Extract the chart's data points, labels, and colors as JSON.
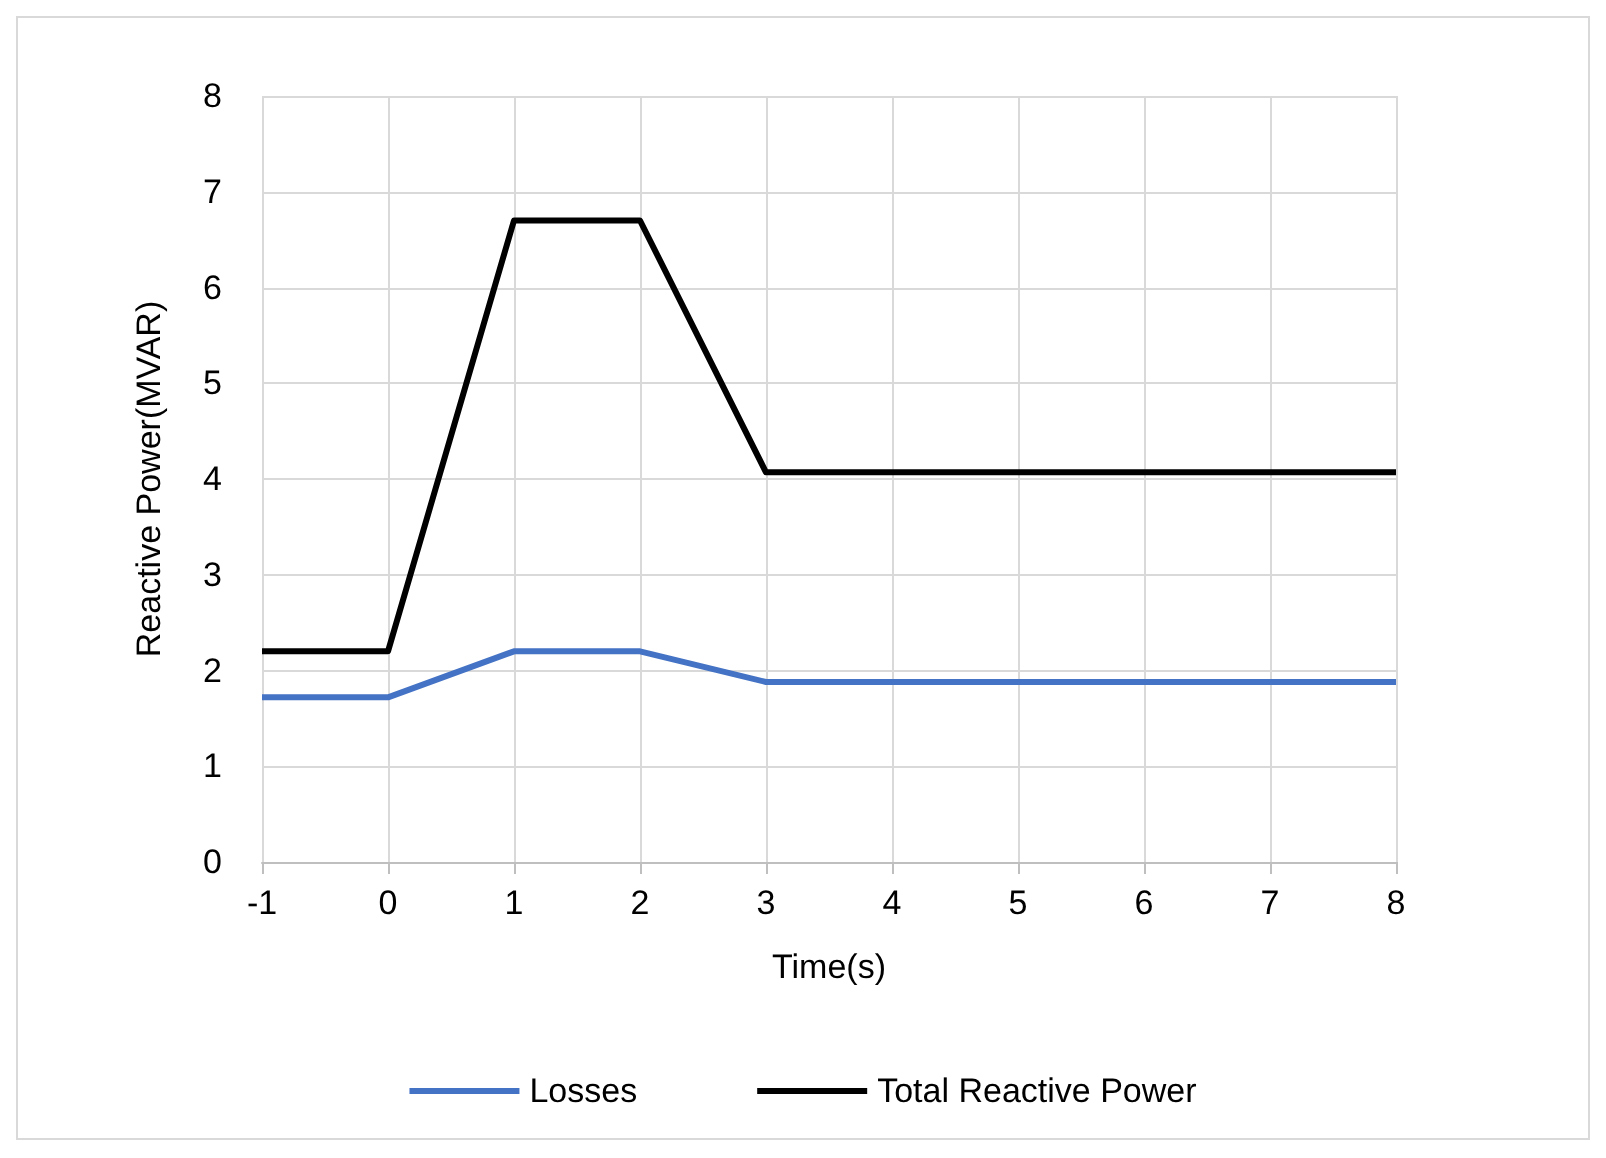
{
  "chart_data": {
    "type": "line",
    "xlabel": "Time(s)",
    "ylabel": "Reactive Power(MVAR)",
    "x": [
      -1,
      0,
      1,
      2,
      3,
      4,
      5,
      6,
      7,
      8
    ],
    "series": [
      {
        "name": "Losses",
        "color": "#4472c4",
        "values": [
          1.72,
          1.72,
          2.2,
          2.2,
          1.88,
          1.88,
          1.88,
          1.88,
          1.88,
          1.88
        ]
      },
      {
        "name": "Total Reactive Power",
        "color": "#000000",
        "values": [
          2.2,
          2.2,
          6.7,
          6.7,
          4.07,
          4.07,
          4.07,
          4.07,
          4.07,
          4.07
        ]
      }
    ],
    "xlim": [
      -1,
      8
    ],
    "xticks": [
      -1,
      0,
      1,
      2,
      3,
      4,
      5,
      6,
      7,
      8
    ],
    "ylim": [
      0,
      8
    ],
    "yticks": [
      0,
      1,
      2,
      3,
      4,
      5,
      6,
      7,
      8
    ],
    "grid": true,
    "legend": "bottom",
    "marker": "none",
    "line_style": "solid"
  }
}
